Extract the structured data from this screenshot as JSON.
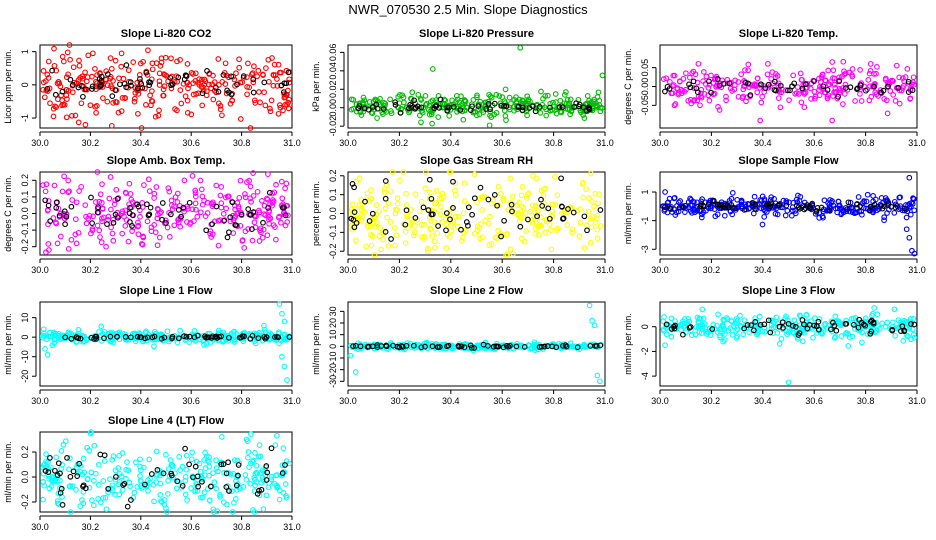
{
  "main_title": "NWR_070530  2.5 Min. Slope Diagnostics",
  "chart_data": [
    {
      "type": "scatter",
      "title": "Slope Li-820 CO2",
      "ylabel": "Licor ppm per min.",
      "color": "#ff0000",
      "xlim": [
        30.0,
        31.0
      ],
      "ylim": [
        -1.3,
        1.2
      ],
      "yticks": [
        -1,
        0,
        1
      ],
      "ytick_labels": [
        "-1",
        "0",
        "1"
      ],
      "xticks": [
        30.0,
        30.2,
        30.4,
        30.6,
        30.8,
        31.0
      ],
      "xtick_labels": [
        "30.0",
        "30.2",
        "30.4",
        "30.6",
        "30.8",
        "31.0"
      ],
      "series": [
        {
          "name": "all",
          "center": 0.0,
          "spread": 0.45,
          "count": 300
        },
        {
          "name": "black",
          "center": 0.0,
          "spread": 0.2,
          "count": 60
        }
      ],
      "outliers": [
        [
          30.09,
          0.85
        ],
        [
          30.18,
          -1.2
        ],
        [
          30.21,
          0.95
        ],
        [
          30.52,
          0.8
        ],
        [
          30.98,
          -0.6
        ]
      ]
    },
    {
      "type": "scatter",
      "title": "Slope Li-820 Pressure",
      "ylabel": "kPa per min.",
      "color": "#00bb00",
      "xlim": [
        30.0,
        31.0
      ],
      "ylim": [
        -0.022,
        0.068
      ],
      "yticks": [
        -0.02,
        0.0,
        0.02,
        0.04,
        0.06
      ],
      "ytick_labels": [
        "-0.02",
        "0.00",
        "0.02",
        "0.04",
        "0.06"
      ],
      "xticks": [
        30.0,
        30.2,
        30.4,
        30.6,
        30.8,
        31.0
      ],
      "xtick_labels": [
        "30.0",
        "30.2",
        "30.4",
        "30.6",
        "30.8",
        "31.0"
      ],
      "series": [
        {
          "name": "all",
          "center": 0.002,
          "spread": 0.007,
          "count": 300
        },
        {
          "name": "black",
          "center": 0.001,
          "spread": 0.003,
          "count": 60
        }
      ],
      "outliers": [
        [
          30.33,
          0.042
        ],
        [
          30.67,
          0.065
        ],
        [
          30.99,
          0.035
        ]
      ]
    },
    {
      "type": "scatter",
      "title": "Slope Li-820 Temp.",
      "ylabel": "degrees C per min.",
      "color": "#ff00ff",
      "xlim": [
        30.0,
        31.0
      ],
      "ylim": [
        -0.11,
        0.11
      ],
      "yticks": [
        -0.05,
        0.0,
        0.05
      ],
      "ytick_labels": [
        "-0.05",
        "0.00",
        "0.05"
      ],
      "xticks": [
        30.0,
        30.2,
        30.4,
        30.6,
        30.8,
        31.0
      ],
      "xtick_labels": [
        "30.0",
        "30.2",
        "30.4",
        "30.6",
        "30.8",
        "31.0"
      ],
      "series": [
        {
          "name": "all",
          "center": 0.0,
          "spread": 0.025,
          "count": 280
        },
        {
          "name": "black",
          "center": 0.0,
          "spread": 0.01,
          "count": 50
        }
      ],
      "outliers": [
        [
          30.42,
          0.06
        ],
        [
          30.67,
          0.065
        ],
        [
          30.82,
          0.06
        ],
        [
          30.39,
          -0.09
        ],
        [
          30.67,
          -0.09
        ]
      ]
    },
    {
      "type": "scatter",
      "title": "Slope Amb. Box Temp.",
      "ylabel": "degrees C per min.",
      "color": "#ff00ff",
      "xlim": [
        30.0,
        31.0
      ],
      "ylim": [
        -0.25,
        0.25
      ],
      "yticks": [
        -0.2,
        -0.1,
        0.0,
        0.1,
        0.2
      ],
      "ytick_labels": [
        "-0.2",
        "-0.1",
        "0.0",
        "0.1",
        "0.2"
      ],
      "xticks": [
        30.0,
        30.2,
        30.4,
        30.6,
        30.8,
        31.0
      ],
      "xtick_labels": [
        "30.0",
        "30.2",
        "30.4",
        "30.6",
        "30.8",
        "31.0"
      ],
      "series": [
        {
          "name": "all",
          "center": 0.0,
          "spread": 0.1,
          "count": 300
        },
        {
          "name": "black",
          "center": 0.0,
          "spread": 0.06,
          "count": 60
        }
      ],
      "outliers": [
        [
          30.28,
          0.22
        ],
        [
          30.07,
          -0.18
        ]
      ]
    },
    {
      "type": "scatter",
      "title": "Slope Gas Stream RH",
      "ylabel": "percent per min.",
      "color": "#ffff00",
      "xlim": [
        30.0,
        31.0
      ],
      "ylim": [
        -0.22,
        0.22
      ],
      "yticks": [
        -0.2,
        -0.1,
        0.0,
        0.1,
        0.2
      ],
      "ytick_labels": [
        "-0.2",
        "-0.1",
        "0.0",
        "0.1",
        "0.2"
      ],
      "xticks": [
        30.0,
        30.2,
        30.4,
        30.6,
        30.8,
        31.0
      ],
      "xtick_labels": [
        "30.0",
        "30.2",
        "30.4",
        "30.6",
        "30.8",
        "31.0"
      ],
      "series": [
        {
          "name": "all",
          "center": 0.0,
          "spread": 0.1,
          "count": 300
        },
        {
          "name": "black",
          "center": 0.0,
          "spread": 0.08,
          "count": 60
        }
      ],
      "outliers": [
        [
          30.72,
          0.2
        ],
        [
          30.31,
          -0.2
        ]
      ]
    },
    {
      "type": "scatter",
      "title": "Slope Sample Flow",
      "ylabel": "ml/min per min.",
      "color": "#0000ff",
      "xlim": [
        30.0,
        31.0
      ],
      "ylim": [
        -3.4,
        2.4
      ],
      "yticks": [
        -3,
        -1,
        1
      ],
      "ytick_labels": [
        "-3",
        "-1",
        "1"
      ],
      "xticks": [
        30.0,
        30.2,
        30.4,
        30.6,
        30.8,
        31.0
      ],
      "xtick_labels": [
        "30.0",
        "30.2",
        "30.4",
        "30.6",
        "30.8",
        "31.0"
      ],
      "series": [
        {
          "name": "all",
          "center": 0.0,
          "spread": 0.35,
          "count": 300
        },
        {
          "name": "black",
          "center": 0.0,
          "spread": 0.15,
          "count": 60
        }
      ],
      "outliers": [
        [
          30.02,
          1.0
        ],
        [
          30.97,
          2.0
        ],
        [
          30.96,
          -1.6
        ],
        [
          30.97,
          -2.2
        ],
        [
          30.98,
          -3.1
        ],
        [
          30.99,
          -3.3
        ]
      ]
    },
    {
      "type": "scatter",
      "title": "Slope Line 1 Flow",
      "ylabel": "ml/min per min.",
      "color": "#00ffff",
      "xlim": [
        30.0,
        31.0
      ],
      "ylim": [
        -25,
        18
      ],
      "yticks": [
        -20,
        -10,
        0,
        10
      ],
      "ytick_labels": [
        "-20",
        "-10",
        "0",
        "10"
      ],
      "xticks": [
        30.0,
        30.2,
        30.4,
        30.6,
        30.8,
        31.0
      ],
      "xtick_labels": [
        "30.0",
        "30.2",
        "30.4",
        "30.6",
        "30.8",
        "31.0"
      ],
      "series": [
        {
          "name": "all",
          "center": 0.0,
          "spread": 1.5,
          "count": 300
        },
        {
          "name": "black",
          "center": 0.0,
          "spread": 0.5,
          "count": 60
        }
      ],
      "outliers": [
        [
          30.02,
          -6
        ],
        [
          30.03,
          -9
        ],
        [
          30.95,
          17
        ],
        [
          30.96,
          12
        ],
        [
          30.97,
          8
        ],
        [
          30.96,
          -10
        ],
        [
          30.97,
          -15
        ],
        [
          30.98,
          -22
        ]
      ]
    },
    {
      "type": "scatter",
      "title": "Slope Line 2 Flow",
      "ylabel": "ml/min per min.",
      "color": "#00ffff",
      "xlim": [
        30.0,
        31.0
      ],
      "ylim": [
        -34,
        38
      ],
      "yticks": [
        -30,
        -20,
        -10,
        0,
        10,
        20,
        30
      ],
      "ytick_labels": [
        "-30",
        "-20",
        "-10",
        "0",
        "10",
        "20",
        "30"
      ],
      "xticks": [
        30.0,
        30.2,
        30.4,
        30.6,
        30.8,
        31.0
      ],
      "xtick_labels": [
        "30.0",
        "30.2",
        "30.4",
        "30.6",
        "30.8",
        "31.0"
      ],
      "series": [
        {
          "name": "all",
          "center": 0.0,
          "spread": 1.2,
          "count": 300
        },
        {
          "name": "black",
          "center": 0.0,
          "spread": 0.5,
          "count": 60
        }
      ],
      "outliers": [
        [
          30.01,
          -8
        ],
        [
          30.03,
          -22
        ],
        [
          30.94,
          35
        ],
        [
          30.95,
          22
        ],
        [
          30.96,
          18
        ],
        [
          30.97,
          -25
        ],
        [
          30.98,
          -30
        ]
      ]
    },
    {
      "type": "scatter",
      "title": "Slope Line 3 Flow",
      "ylabel": "ml/min per min.",
      "color": "#00ffff",
      "xlim": [
        30.0,
        31.0
      ],
      "ylim": [
        -4.8,
        2.0
      ],
      "yticks": [
        -4,
        -2,
        0
      ],
      "ytick_labels": [
        "-4",
        "-2",
        "0"
      ],
      "xticks": [
        30.0,
        30.2,
        30.4,
        30.6,
        30.8,
        31.0
      ],
      "xtick_labels": [
        "30.0",
        "30.2",
        "30.4",
        "30.6",
        "30.8",
        "31.0"
      ],
      "series": [
        {
          "name": "all",
          "center": 0.0,
          "spread": 0.5,
          "count": 300
        },
        {
          "name": "black",
          "center": 0.0,
          "spread": 0.35,
          "count": 60
        }
      ],
      "outliers": [
        [
          30.02,
          -1.5
        ],
        [
          30.5,
          -4.5
        ]
      ]
    },
    {
      "type": "scatter",
      "title": "Slope Line 4 (LT) Flow",
      "ylabel": "ml/min per min.",
      "color": "#00ffff",
      "xlim": [
        30.0,
        31.0
      ],
      "ylim": [
        -0.28,
        0.36
      ],
      "yticks": [
        -0.2,
        0.0,
        0.2
      ],
      "ytick_labels": [
        "-0.2",
        "0.0",
        "0.2"
      ],
      "xticks": [
        30.0,
        30.2,
        30.4,
        30.6,
        30.8,
        31.0
      ],
      "xtick_labels": [
        "30.0",
        "30.2",
        "30.4",
        "30.6",
        "30.8",
        "31.0"
      ],
      "series": [
        {
          "name": "all",
          "center": 0.0,
          "spread": 0.13,
          "count": 300
        },
        {
          "name": "black",
          "center": 0.0,
          "spread": 0.1,
          "count": 60
        }
      ],
      "outliers": [
        [
          30.94,
          0.33
        ],
        [
          30.82,
          0.3
        ],
        [
          30.5,
          -0.25
        ]
      ]
    }
  ]
}
